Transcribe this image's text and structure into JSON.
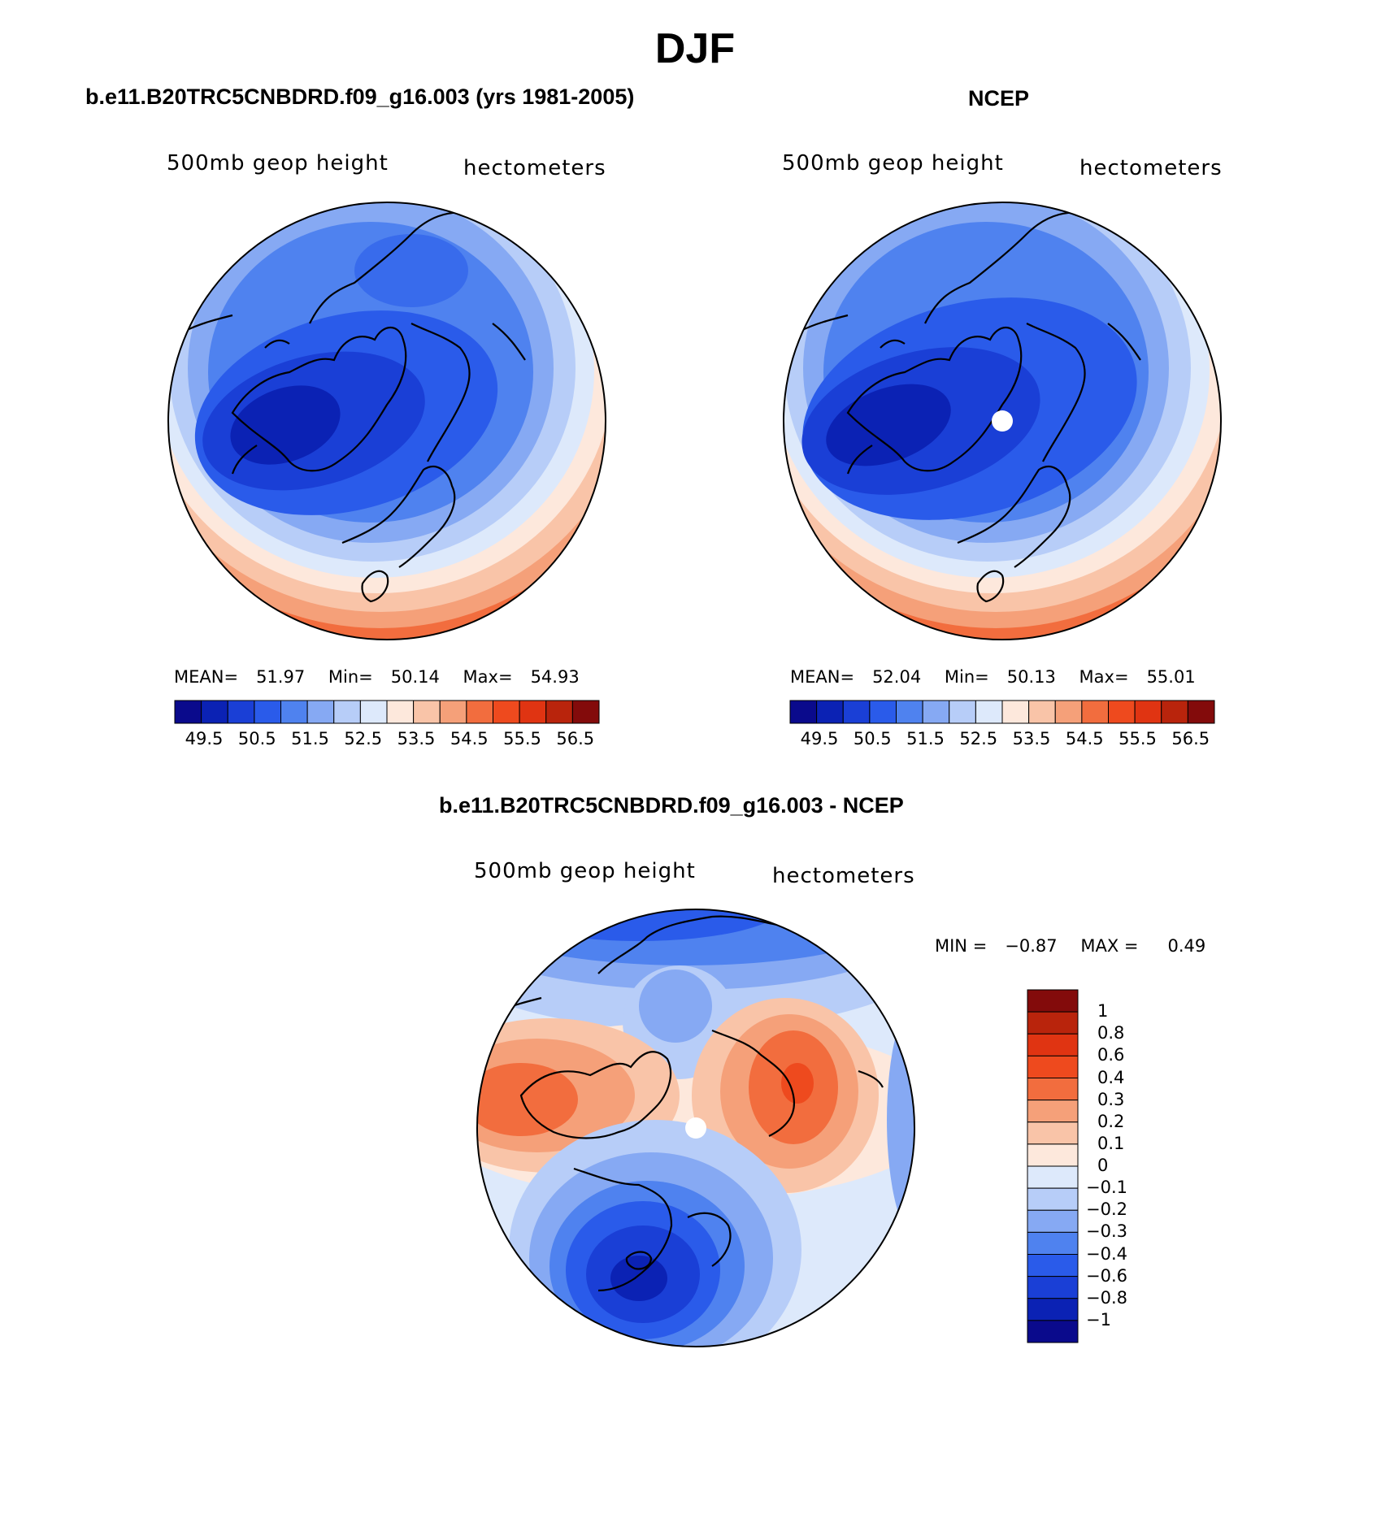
{
  "season_title": "DJF",
  "panels": [
    {
      "title": "b.e11.B20TRC5CNBDRD.f09_g16.003 (yrs 1981-2005)",
      "left_label": "500mb geop height",
      "right_label": "hectometers",
      "stats": {
        "mean_label": "MEAN=",
        "mean": "51.97",
        "min_label": "Min=",
        "min": "50.14",
        "max_label": "Max=",
        "max": "54.93"
      },
      "colorbar_labels": [
        "49.5",
        "50.5",
        "51.5",
        "52.5",
        "53.5",
        "54.5",
        "55.5",
        "56.5"
      ]
    },
    {
      "title": "NCEP",
      "left_label": "500mb geop height",
      "right_label": "hectometers",
      "stats": {
        "mean_label": "MEAN=",
        "mean": "52.04",
        "min_label": "Min=",
        "min": "50.13",
        "max_label": "Max=",
        "max": "55.01"
      },
      "colorbar_labels": [
        "49.5",
        "50.5",
        "51.5",
        "52.5",
        "53.5",
        "54.5",
        "55.5",
        "56.5"
      ]
    },
    {
      "title": "b.e11.B20TRC5CNBDRD.f09_g16.003 - NCEP",
      "left_label": "500mb geop height",
      "right_label": "hectometers",
      "stats": {
        "min_label": "MIN =",
        "min": "−0.87",
        "max_label": "MAX =",
        "max": "0.49"
      },
      "colorbar_labels": [
        "1",
        "0.8",
        "0.6",
        "0.4",
        "0.3",
        "0.2",
        "0.1",
        "0",
        "−0.1",
        "−0.2",
        "−0.3",
        "−0.4",
        "−0.6",
        "−0.8",
        "−1"
      ]
    }
  ],
  "colors": {
    "abs_scale": [
      "#0a0a8c",
      "#0b22b4",
      "#1a3fd6",
      "#2a5bea",
      "#4f82ef",
      "#86a9f3",
      "#b7cdf8",
      "#dde9fb",
      "#fde8dc",
      "#f9c4a8",
      "#f5a079",
      "#f26d3e",
      "#ee4a1e",
      "#e03412",
      "#b9240c",
      "#830b0b"
    ],
    "diff_scale": [
      "#830b0b",
      "#b9240c",
      "#e03412",
      "#ee4a1e",
      "#f26d3e",
      "#f5a079",
      "#f9c4a8",
      "#fde8dc",
      "#dde9fb",
      "#b7cdf8",
      "#86a9f3",
      "#4f82ef",
      "#2a5bea",
      "#1a3fd6",
      "#0b22b4",
      "#0a0a8c"
    ]
  }
}
